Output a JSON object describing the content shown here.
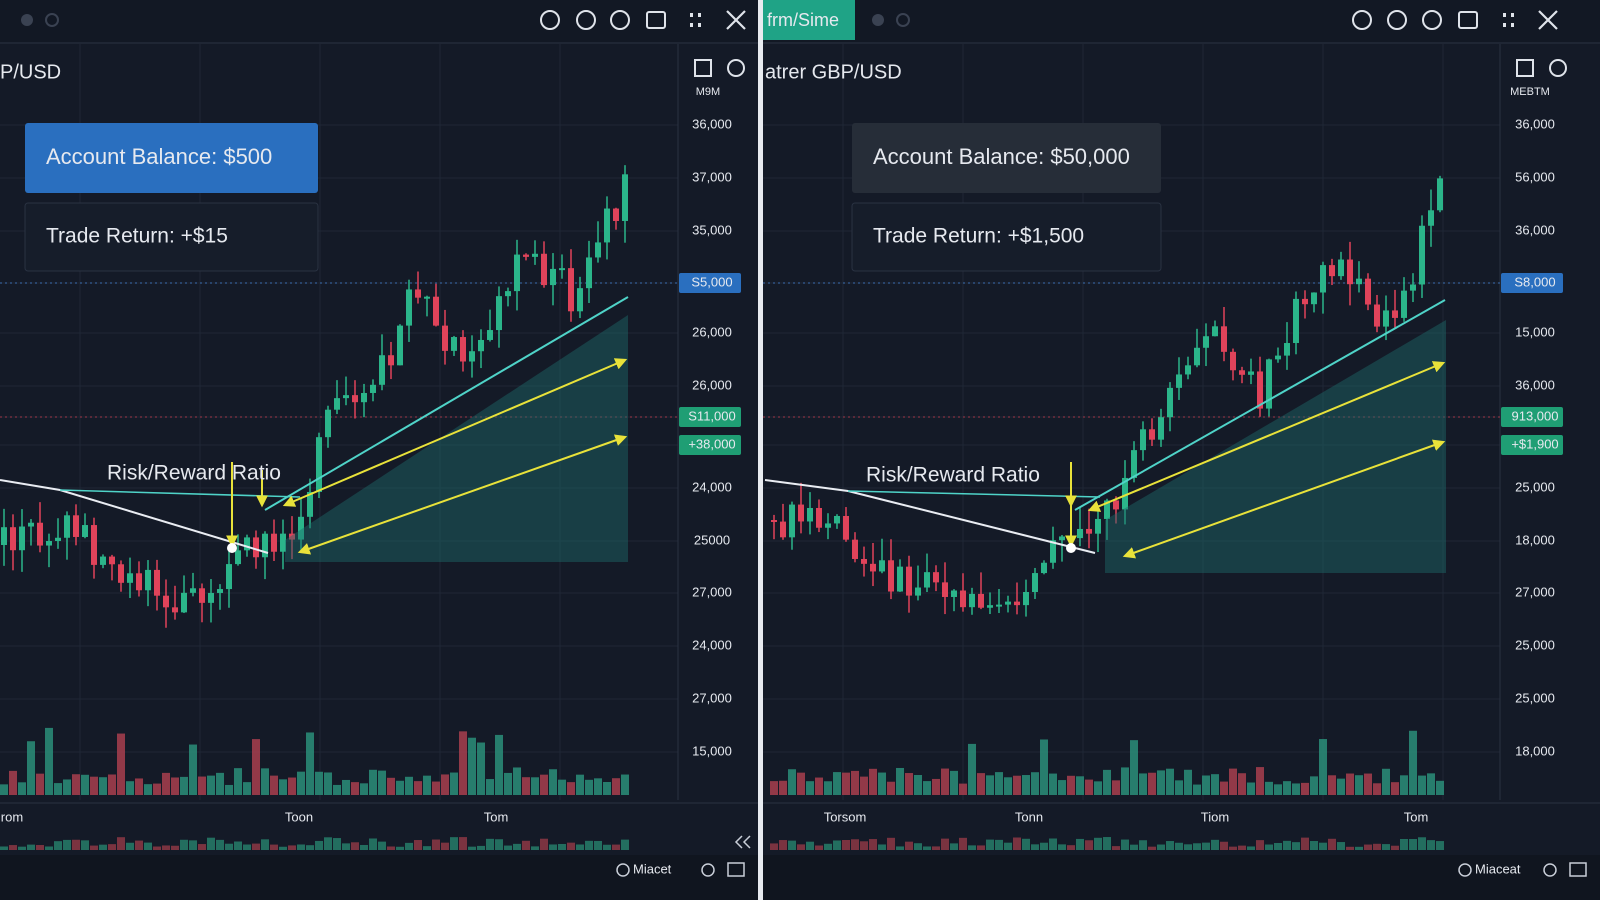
{
  "panels": [
    {
      "tab": null,
      "title": "P/USD",
      "unit_label": "M9M",
      "balance": "Account Balance: $500",
      "trade_return": "Trade Return: +$15",
      "rr_label": "Risk/Reward Ratio",
      "price_labels": [
        {
          "label": "36,000"
        },
        {
          "label": "37,000"
        },
        {
          "label": "35,000"
        },
        {
          "label": "S5,000",
          "highlight": "blue"
        },
        {
          "label": "26,000"
        },
        {
          "label": "26,000"
        },
        {
          "label": "S11,000",
          "highlight": "green"
        },
        {
          "label": "+38,000",
          "highlight": "green"
        },
        {
          "label": "24,000"
        },
        {
          "label": "25000"
        },
        {
          "label": "27,000"
        },
        {
          "label": "24,000"
        },
        {
          "label": "27,000"
        },
        {
          "label": "15,000"
        }
      ],
      "x_labels": [
        "rom",
        "Toon",
        "Tom"
      ],
      "footer": "Miacet",
      "balance_style": "blue"
    },
    {
      "tab": "frm/Sime",
      "title": "atrer GBP/USD",
      "unit_label": "MEBTM",
      "balance": "Account Balance: $50,000",
      "trade_return": "Trade Return: +$1,500",
      "rr_label": "Risk/Reward Ratio",
      "price_labels": [
        {
          "label": "36,000"
        },
        {
          "label": "56,000"
        },
        {
          "label": "36,000"
        },
        {
          "label": "S8,000",
          "highlight": "blue"
        },
        {
          "label": "15,000"
        },
        {
          "label": "36,000"
        },
        {
          "label": "913,000",
          "highlight": "green"
        },
        {
          "label": "+$1,900",
          "highlight": "green"
        },
        {
          "label": "25,000"
        },
        {
          "label": "18,000"
        },
        {
          "label": "27,000"
        },
        {
          "label": "25,000"
        },
        {
          "label": "25,000"
        },
        {
          "label": "18,000"
        }
      ],
      "x_labels": [
        "Torsom",
        "Tonn",
        "Tiom",
        "Tom"
      ],
      "footer": "Miaceat",
      "balance_style": "gray"
    }
  ]
}
